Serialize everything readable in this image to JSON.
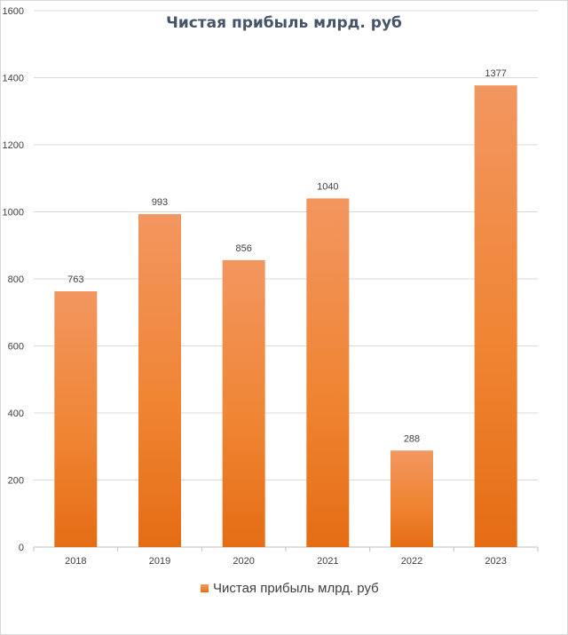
{
  "chart_data": {
    "type": "bar",
    "title": "Чистая прибыль млрд. руб",
    "categories": [
      "2018",
      "2019",
      "2020",
      "2021",
      "2022",
      "2023"
    ],
    "series": [
      {
        "name": "Чистая прибыль млрд. руб",
        "values": [
          763,
          993,
          856,
          1040,
          288,
          1377
        ],
        "color": "#ED7D31"
      }
    ],
    "ylim": [
      0,
      1600
    ],
    "yticks": [
      0,
      200,
      400,
      600,
      800,
      1000,
      1200,
      1400,
      1600
    ],
    "grid": true,
    "legend": "bottom",
    "data_labels": true
  }
}
